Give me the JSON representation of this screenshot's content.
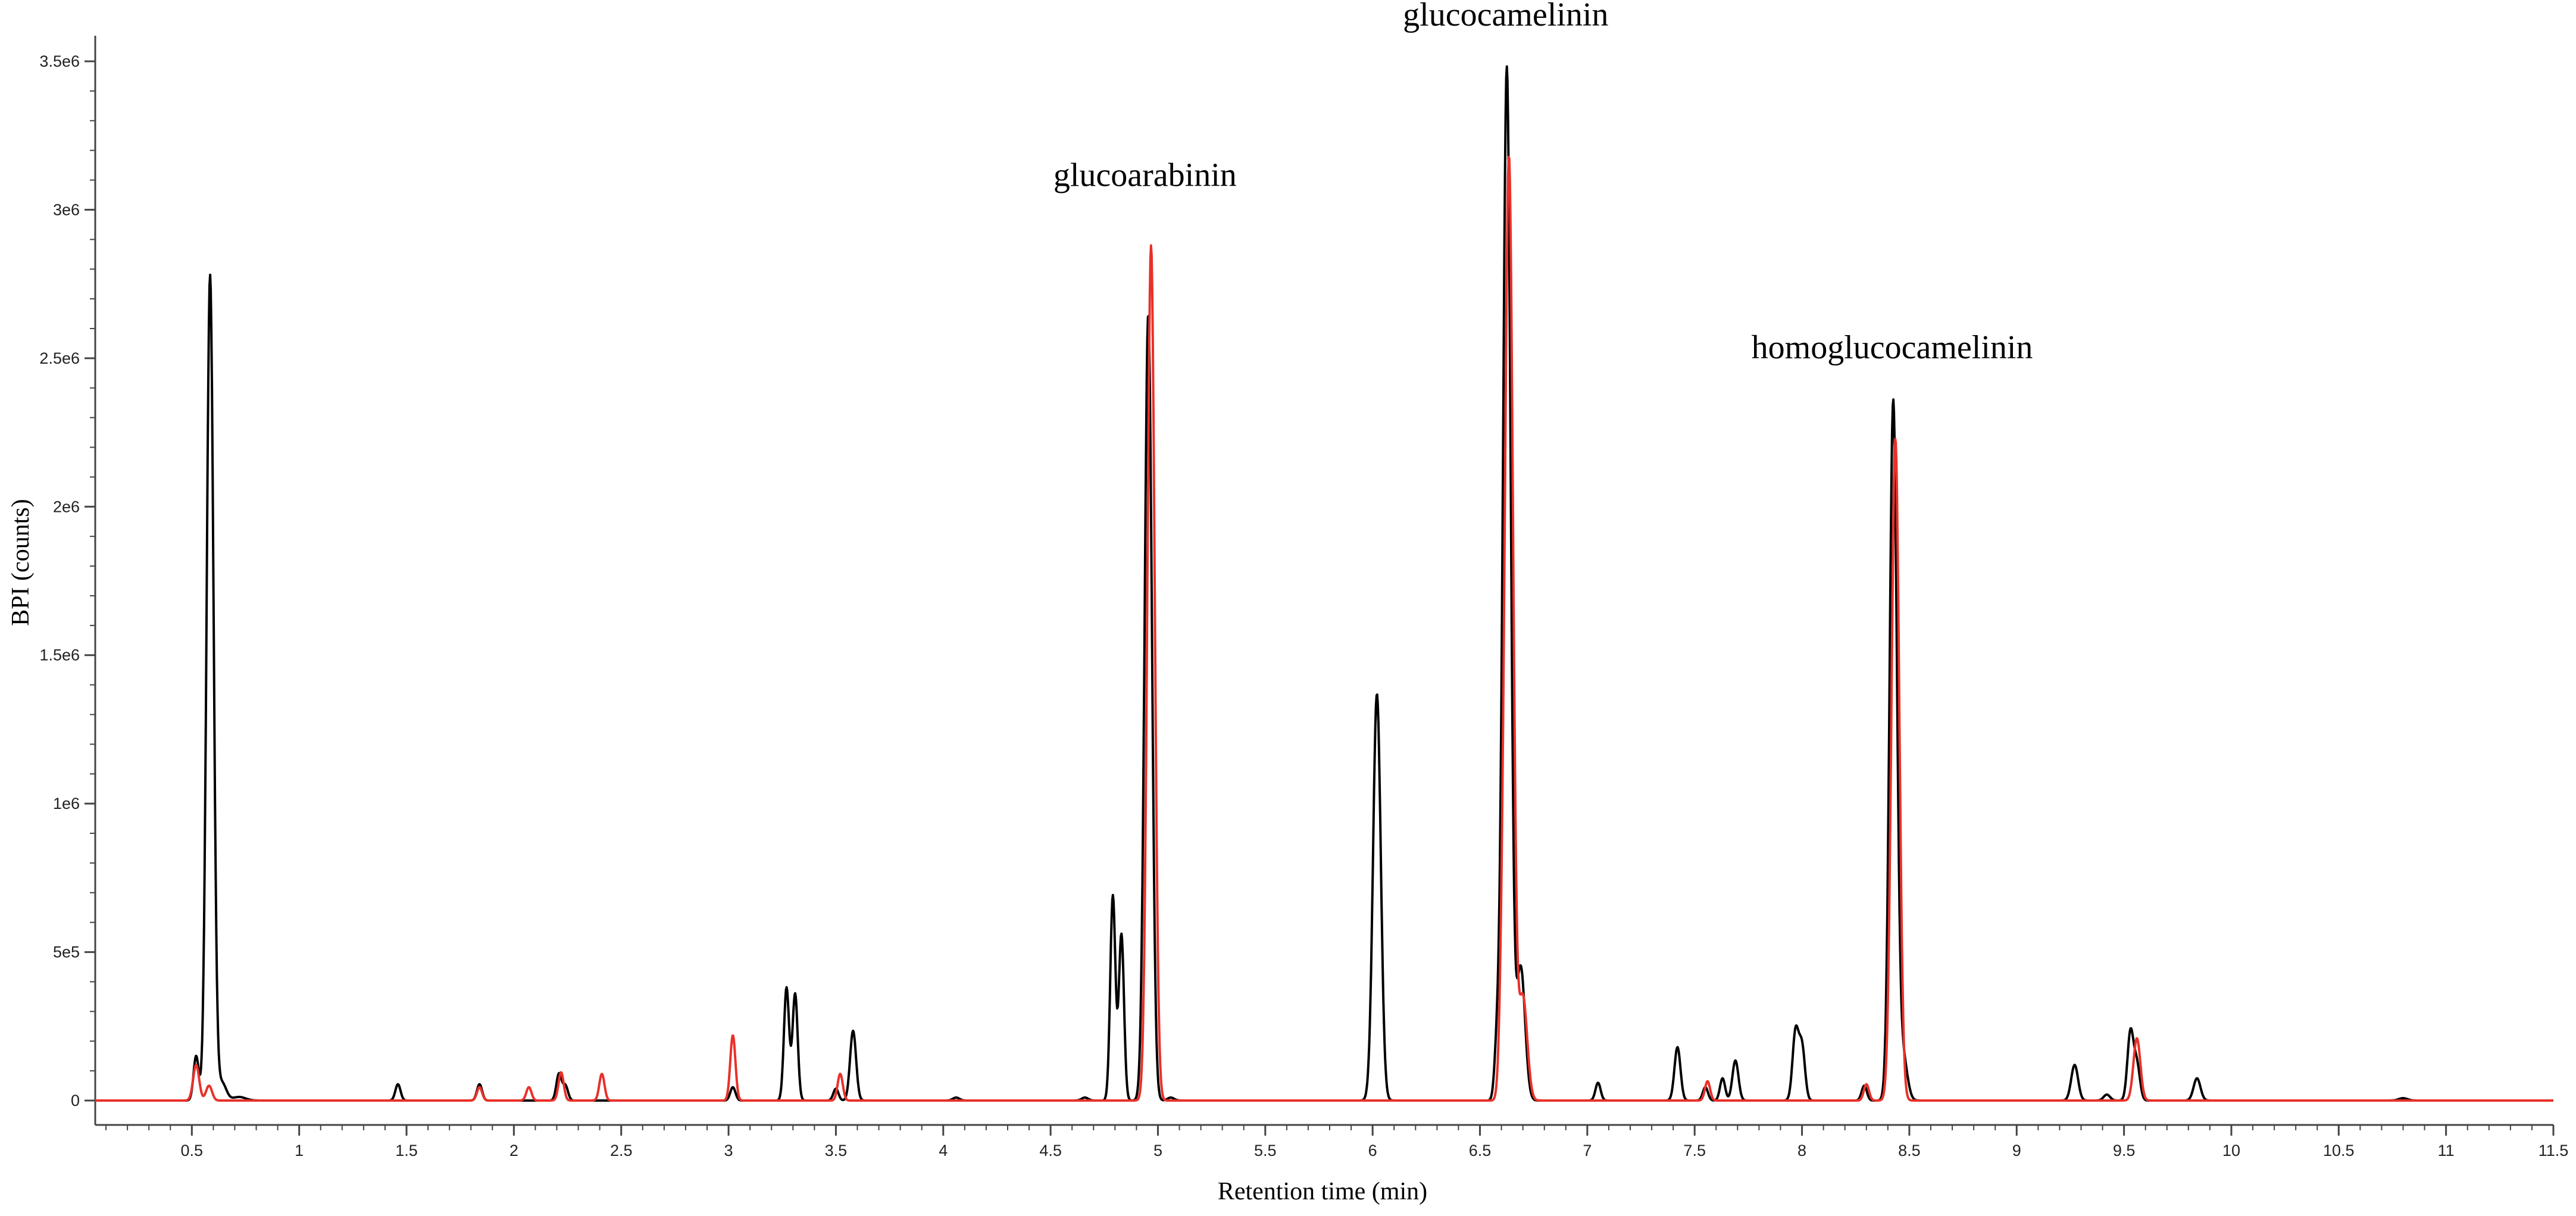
{
  "chart_data": {
    "type": "line",
    "xlabel": "Retention time (min)",
    "ylabel": "BPI (counts)",
    "xlim": [
      0.05,
      11.5
    ],
    "ylim": [
      0,
      3500000
    ],
    "xticks": [
      0.5,
      1,
      1.5,
      2,
      2.5,
      3,
      3.5,
      4,
      4.5,
      5,
      5.5,
      6,
      6.5,
      7,
      7.5,
      8,
      8.5,
      9,
      9.5,
      10,
      10.5,
      11,
      11.5
    ],
    "xtick_labels": [
      "0.5",
      "1",
      "1.5",
      "2",
      "2.5",
      "3",
      "3.5",
      "4",
      "4.5",
      "5",
      "5.5",
      "6",
      "6.5",
      "7",
      "7.5",
      "8",
      "8.5",
      "9",
      "9.5",
      "10",
      "10.5",
      "11",
      "11.5"
    ],
    "yticks": [
      0,
      500000,
      1000000,
      1500000,
      2000000,
      2500000,
      3000000,
      3500000
    ],
    "ytick_labels": [
      "0",
      "5e5",
      "1e6",
      "1.5e6",
      "2e6",
      "2.5e6",
      "3e6",
      "3.5e6"
    ],
    "annotations": [
      {
        "text": "glucoarabinin",
        "x": 4.94,
        "y": 3080000
      },
      {
        "text": "glucocamelinin",
        "x": 6.62,
        "y": 3620000
      },
      {
        "text": "homoglucocamelinin",
        "x": 8.42,
        "y": 2500000
      }
    ],
    "series": [
      {
        "color": "#000000",
        "peaks": [
          [
            0.52,
            150000,
            0.012
          ],
          [
            0.585,
            2780000,
            0.016
          ],
          [
            0.64,
            60000,
            0.02
          ],
          [
            0.72,
            12000,
            0.03
          ],
          [
            1.46,
            55000,
            0.012
          ],
          [
            1.84,
            55000,
            0.012
          ],
          [
            2.21,
            90000,
            0.012
          ],
          [
            2.24,
            50000,
            0.012
          ],
          [
            3.02,
            45000,
            0.012
          ],
          [
            3.27,
            380000,
            0.012
          ],
          [
            3.31,
            360000,
            0.012
          ],
          [
            3.5,
            40000,
            0.012
          ],
          [
            3.58,
            235000,
            0.014
          ],
          [
            4.06,
            10000,
            0.015
          ],
          [
            4.66,
            10000,
            0.015
          ],
          [
            4.79,
            690000,
            0.012
          ],
          [
            4.83,
            560000,
            0.012
          ],
          [
            4.955,
            2650000,
            0.017
          ],
          [
            5.06,
            10000,
            0.015
          ],
          [
            6.02,
            1370000,
            0.018
          ],
          [
            6.58,
            180000,
            0.012
          ],
          [
            6.625,
            3480000,
            0.018
          ],
          [
            6.69,
            450000,
            0.02
          ],
          [
            7.05,
            60000,
            0.012
          ],
          [
            7.42,
            180000,
            0.014
          ],
          [
            7.55,
            45000,
            0.012
          ],
          [
            7.63,
            75000,
            0.012
          ],
          [
            7.69,
            135000,
            0.014
          ],
          [
            7.97,
            230000,
            0.014
          ],
          [
            8.0,
            180000,
            0.014
          ],
          [
            8.29,
            50000,
            0.012
          ],
          [
            8.425,
            2350000,
            0.017
          ],
          [
            8.47,
            150000,
            0.02
          ],
          [
            9.27,
            120000,
            0.016
          ],
          [
            9.42,
            20000,
            0.015
          ],
          [
            9.53,
            230000,
            0.014
          ],
          [
            9.56,
            120000,
            0.014
          ],
          [
            9.84,
            75000,
            0.016
          ],
          [
            10.8,
            8000,
            0.02
          ]
        ]
      },
      {
        "color": "#e8312a",
        "peaks": [
          [
            0.52,
            120000,
            0.014
          ],
          [
            0.58,
            50000,
            0.014
          ],
          [
            1.84,
            45000,
            0.012
          ],
          [
            2.07,
            45000,
            0.012
          ],
          [
            2.22,
            95000,
            0.012
          ],
          [
            2.41,
            90000,
            0.012
          ],
          [
            3.02,
            220000,
            0.012
          ],
          [
            3.52,
            90000,
            0.012
          ],
          [
            4.968,
            2880000,
            0.017
          ],
          [
            6.6,
            160000,
            0.012
          ],
          [
            6.635,
            3180000,
            0.019
          ],
          [
            6.7,
            350000,
            0.02
          ],
          [
            7.56,
            65000,
            0.012
          ],
          [
            8.3,
            55000,
            0.012
          ],
          [
            8.435,
            2230000,
            0.018
          ],
          [
            9.56,
            210000,
            0.016
          ]
        ]
      }
    ]
  }
}
